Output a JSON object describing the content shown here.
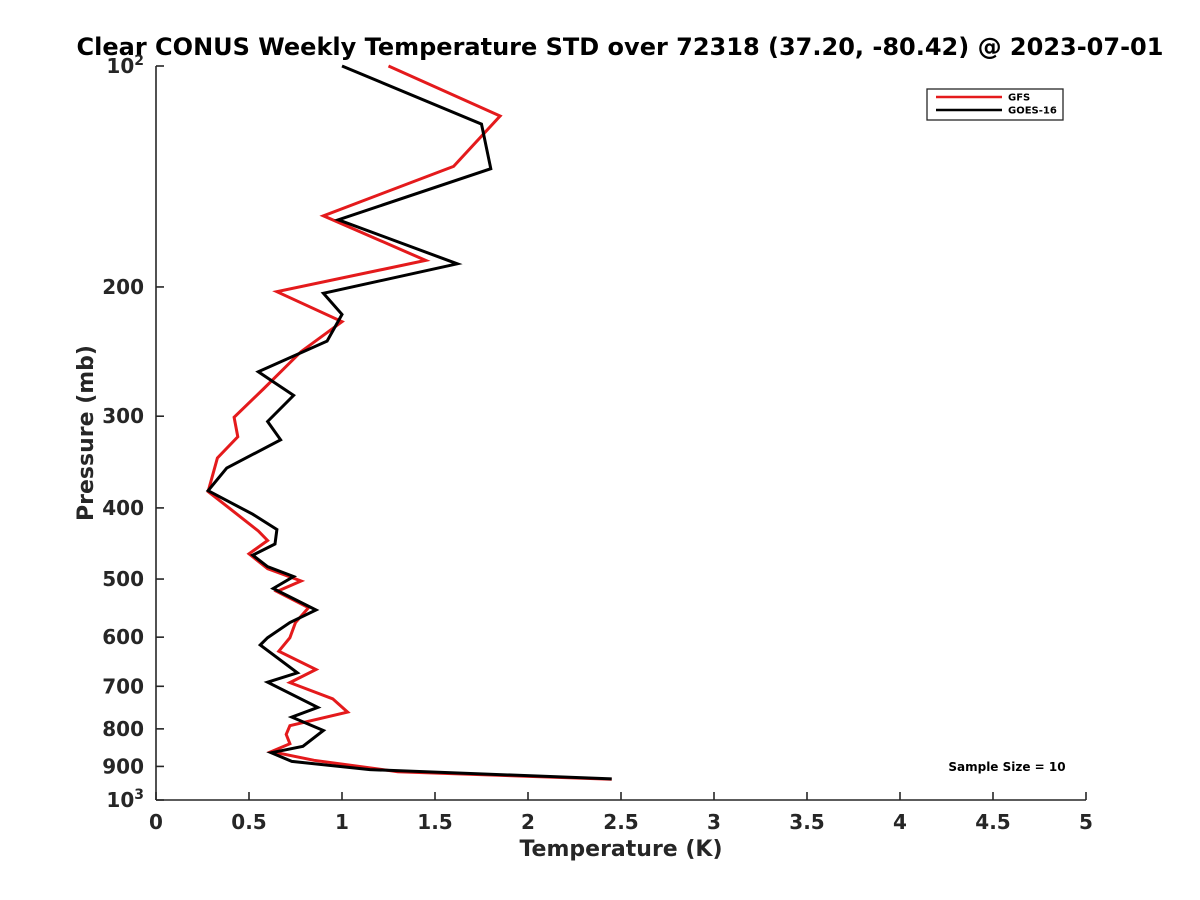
{
  "chart_data": {
    "type": "line",
    "title": "Clear CONUS Weekly Temperature STD over 72318 (37.20, -80.42) @ 2023-07-01",
    "xlabel": "Temperature (K)",
    "ylabel": "Pressure (mb)",
    "xlim": [
      0,
      5
    ],
    "ylim": [
      100,
      1000
    ],
    "y_scale": "log",
    "y_reversed": true,
    "grid": false,
    "legend_position": "top-right",
    "xticks": [
      0,
      0.5,
      1,
      1.5,
      2,
      2.5,
      3,
      3.5,
      4,
      4.5,
      5
    ],
    "xtick_labels": [
      "0",
      "0.5",
      "1",
      "1.5",
      "2",
      "2.5",
      "3",
      "3.5",
      "4",
      "4.5",
      "5"
    ],
    "yticks": [
      100,
      200,
      300,
      400,
      500,
      600,
      700,
      800,
      900,
      1000
    ],
    "ytick_labels": [
      {
        "base": "10",
        "exp": "2"
      },
      {
        "base": "200",
        "exp": ""
      },
      {
        "base": "300",
        "exp": ""
      },
      {
        "base": "400",
        "exp": ""
      },
      {
        "base": "500",
        "exp": ""
      },
      {
        "base": "600",
        "exp": ""
      },
      {
        "base": "700",
        "exp": ""
      },
      {
        "base": "800",
        "exp": ""
      },
      {
        "base": "900",
        "exp": ""
      },
      {
        "base": "10",
        "exp": "3"
      }
    ],
    "annotation": "Sample Size = 10",
    "series": [
      {
        "name": "GFS",
        "color": "#e41a1c",
        "points": [
          [
            1.25,
            100
          ],
          [
            1.85,
            117
          ],
          [
            1.6,
            137
          ],
          [
            0.9,
            160
          ],
          [
            1.45,
            184
          ],
          [
            0.65,
            203
          ],
          [
            1.0,
            223
          ],
          [
            0.78,
            245
          ],
          [
            0.58,
            275
          ],
          [
            0.42,
            301
          ],
          [
            0.44,
            320
          ],
          [
            0.33,
            342
          ],
          [
            0.28,
            380
          ],
          [
            0.42,
            405
          ],
          [
            0.55,
            430
          ],
          [
            0.6,
            443
          ],
          [
            0.5,
            462
          ],
          [
            0.6,
            484
          ],
          [
            0.78,
            503
          ],
          [
            0.65,
            520
          ],
          [
            0.82,
            547
          ],
          [
            0.75,
            573
          ],
          [
            0.72,
            601
          ],
          [
            0.66,
            627
          ],
          [
            0.86,
            664
          ],
          [
            0.72,
            692
          ],
          [
            0.95,
            728
          ],
          [
            1.03,
            759
          ],
          [
            0.72,
            792
          ],
          [
            0.7,
            814
          ],
          [
            0.72,
            838
          ],
          [
            0.62,
            859
          ],
          [
            0.85,
            883
          ],
          [
            1.3,
            915
          ],
          [
            2.45,
            937
          ]
        ]
      },
      {
        "name": "GOES-16",
        "color": "#000000",
        "points": [
          [
            1.0,
            100
          ],
          [
            1.75,
            120
          ],
          [
            1.8,
            138
          ],
          [
            0.98,
            162
          ],
          [
            1.62,
            186
          ],
          [
            0.9,
            204
          ],
          [
            1.0,
            218
          ],
          [
            0.92,
            237
          ],
          [
            0.55,
            261
          ],
          [
            0.74,
            281
          ],
          [
            0.6,
            305
          ],
          [
            0.67,
            323
          ],
          [
            0.38,
            353
          ],
          [
            0.28,
            379
          ],
          [
            0.52,
            408
          ],
          [
            0.65,
            428
          ],
          [
            0.64,
            448
          ],
          [
            0.52,
            464
          ],
          [
            0.6,
            481
          ],
          [
            0.74,
            496
          ],
          [
            0.63,
            515
          ],
          [
            0.86,
            551
          ],
          [
            0.72,
            573
          ],
          [
            0.6,
            601
          ],
          [
            0.56,
            615
          ],
          [
            0.76,
            671
          ],
          [
            0.6,
            691
          ],
          [
            0.87,
            748
          ],
          [
            0.73,
            771
          ],
          [
            0.9,
            804
          ],
          [
            0.79,
            845
          ],
          [
            0.62,
            862
          ],
          [
            0.73,
            886
          ],
          [
            1.15,
            909
          ],
          [
            2.45,
            936
          ]
        ]
      }
    ]
  }
}
